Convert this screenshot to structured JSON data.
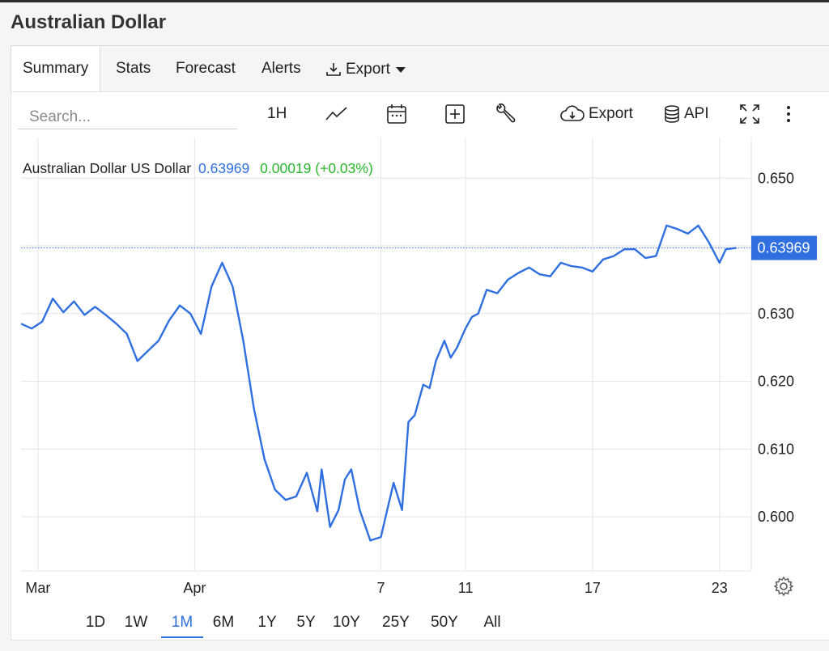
{
  "page": {
    "title": "Australian Dollar"
  },
  "tabs": [
    {
      "label": "Summary",
      "active": true
    },
    {
      "label": "Stats"
    },
    {
      "label": "Forecast"
    },
    {
      "label": "Alerts"
    },
    {
      "label": "Export",
      "icon": "download-icon",
      "dropdown": true
    }
  ],
  "toolbar": {
    "search_placeholder": "Search...",
    "interval_label": "1H",
    "chart_type_icon": "line-chart-icon",
    "calendar_icon": "calendar-icon",
    "add_icon": "plus-box-icon",
    "tools_icon": "wrench-icon",
    "export_label": "Export",
    "export_icon": "cloud-download-icon",
    "api_label": "API",
    "api_icon": "database-icon",
    "fullscreen_icon": "fullscreen-icon",
    "more_icon": "more-vertical-icon"
  },
  "legend": {
    "name": "Australian Dollar US Dollar",
    "price": "0.63969",
    "change": "0.00019 (+0.03%)"
  },
  "range_buttons": [
    "1D",
    "1W",
    "1M",
    "6M",
    "1Y",
    "5Y",
    "10Y",
    "25Y",
    "50Y",
    "All"
  ],
  "range_active": "1M",
  "settings_icon": "gear-icon",
  "colors": {
    "line": "#2f6fe0",
    "positive": "#2bb52b",
    "last_badge": "#2f6fe0"
  },
  "chart_data": {
    "type": "line",
    "title": "",
    "series": [
      {
        "name": "Australian Dollar US Dollar",
        "x": [
          -10,
          -9.5,
          -9,
          -8.5,
          -8,
          -7.5,
          -7,
          -6.5,
          -6,
          -5.5,
          -5,
          -4.5,
          -4,
          -3.5,
          -3,
          -2.5,
          -2,
          -1.5,
          -1,
          -0.5,
          0,
          0.5,
          1,
          1.5,
          2,
          2.5,
          3,
          3.5,
          4,
          4.2,
          4.6,
          5,
          5.3,
          5.6,
          6,
          6.5,
          7,
          7.3,
          7.6,
          8,
          8.3,
          8.6,
          9,
          9.3,
          9.6,
          10,
          10.3,
          10.6,
          11,
          11.3,
          11.6,
          12,
          12.5,
          13,
          13.5,
          14,
          14.5,
          15,
          15.5,
          16,
          16.5,
          17,
          17.5,
          18,
          18.5,
          19,
          19.5,
          20,
          20.5,
          21,
          21.5,
          22,
          22.5,
          23,
          23.3,
          23.8
        ],
        "values": [
          0.6285,
          0.6278,
          0.6288,
          0.6322,
          0.6302,
          0.6318,
          0.6298,
          0.631,
          0.6298,
          0.6285,
          0.627,
          0.623,
          0.6245,
          0.626,
          0.629,
          0.6312,
          0.63,
          0.627,
          0.634,
          0.6375,
          0.634,
          0.626,
          0.616,
          0.6085,
          0.604,
          0.6025,
          0.603,
          0.6065,
          0.6008,
          0.607,
          0.5985,
          0.601,
          0.6055,
          0.607,
          0.601,
          0.5965,
          0.597,
          0.601,
          0.605,
          0.601,
          0.614,
          0.615,
          0.6195,
          0.619,
          0.623,
          0.626,
          0.6235,
          0.625,
          0.6278,
          0.6295,
          0.63,
          0.6335,
          0.633,
          0.635,
          0.636,
          0.6368,
          0.6358,
          0.6355,
          0.6375,
          0.637,
          0.6368,
          0.6362,
          0.638,
          0.6385,
          0.6395,
          0.6395,
          0.6382,
          0.6385,
          0.643,
          0.6425,
          0.6418,
          0.643,
          0.6405,
          0.6375,
          0.6395,
          0.63969
        ]
      }
    ],
    "x_ticks": [
      {
        "label": "Mar",
        "x": -9.2
      },
      {
        "label": "Apr",
        "x": -1.8
      },
      {
        "label": "7",
        "x": 7
      },
      {
        "label": "11",
        "x": 11
      },
      {
        "label": "17",
        "x": 17
      },
      {
        "label": "23",
        "x": 23
      }
    ],
    "y_ticks": [
      0.65,
      0.64,
      0.63,
      0.62,
      0.61,
      0.6
    ],
    "y_tick_labels": [
      "0.650",
      "",
      "0.630",
      "0.620",
      "0.610",
      "0.600"
    ],
    "ylim": [
      0.592,
      0.656
    ],
    "xlim": [
      -10,
      24.5
    ],
    "last_value_label": "0.63969",
    "grid": true
  }
}
